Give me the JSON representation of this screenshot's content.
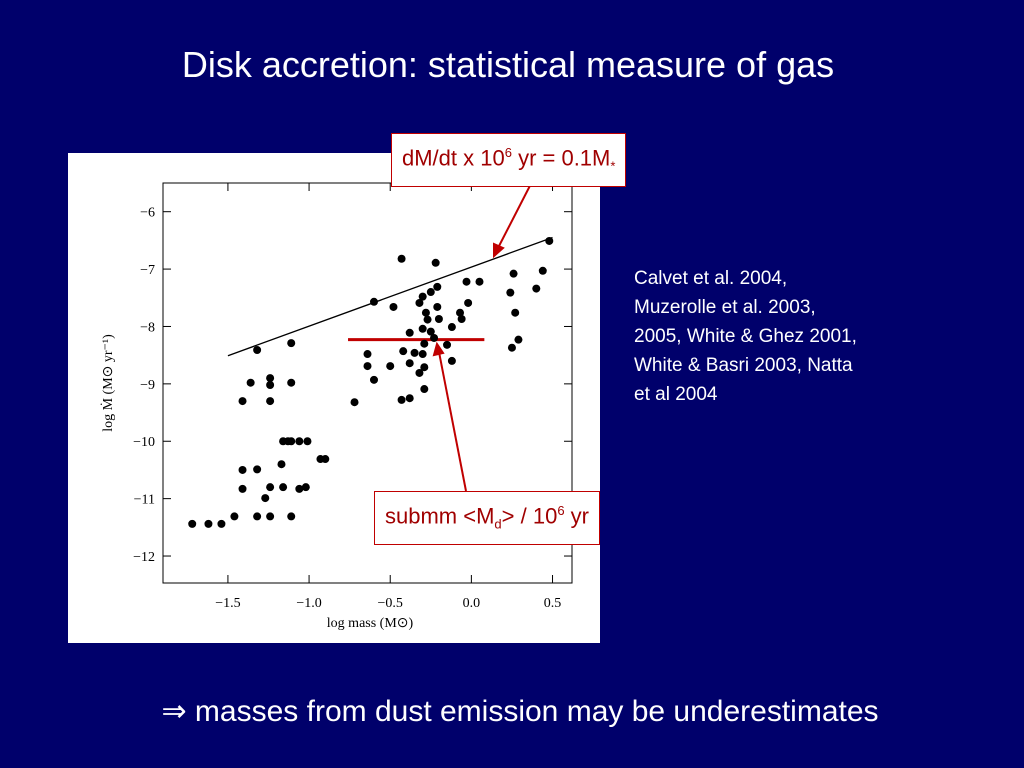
{
  "title": "Disk accretion: statistical measure of gas",
  "references": [
    "Calvet et al. 2004,",
    "Muzerolle et al. 2003,",
    "2005, White & Ghez 2001,",
    "White & Basri 2003, Natta",
    "et al 2004"
  ],
  "conclusion": "⇒ masses from dust emission may be underestimates",
  "callouts": [
    {
      "segments": [
        {
          "text": "dM/dt x 10"
        },
        {
          "text": "6",
          "style": "sup"
        },
        {
          "text": " yr = 0.1M"
        },
        {
          "text": "*",
          "style": "sub"
        }
      ]
    },
    {
      "segments": [
        {
          "text": "submm <M"
        },
        {
          "text": "d",
          "style": "sub"
        },
        {
          "text": "> / 10"
        },
        {
          "text": "6",
          "style": "sup"
        },
        {
          "text": " yr"
        }
      ]
    }
  ],
  "chart_data": {
    "type": "scatter",
    "x_label": "log mass (M⊙)",
    "y_label": "log Ṁ (M⊙ yr⁻¹)",
    "xlim": [
      -1.9,
      0.62
    ],
    "ylim": [
      -12.47,
      -5.5
    ],
    "xticks": [
      {
        "value": -1.5,
        "label": "−1.5"
      },
      {
        "value": -1.0,
        "label": "−1.0"
      },
      {
        "value": -0.5,
        "label": "−0.5"
      },
      {
        "value": 0,
        "label": "0.0"
      },
      0.5
    ],
    "yticks": [
      {
        "value": -6,
        "label": "−6"
      },
      {
        "value": -7,
        "label": "−7"
      },
      {
        "value": -8,
        "label": "−8"
      },
      {
        "value": -9,
        "label": "−9"
      },
      {
        "value": -10,
        "label": "−10"
      },
      {
        "value": -11,
        "label": "−11"
      },
      {
        "value": -12,
        "label": "−12"
      }
    ],
    "color": "#000000",
    "x": [
      -1.72,
      -1.62,
      -1.54,
      -1.46,
      -1.41,
      -1.41,
      -1.41,
      -1.36,
      -1.32,
      -1.32,
      -1.32,
      -1.27,
      -1.24,
      -1.24,
      -1.24,
      -1.24,
      -1.24,
      -1.17,
      -1.16,
      -1.13,
      -1.16,
      -1.11,
      -1.11,
      -1.11,
      -1.11,
      -1.06,
      -1.06,
      -1.02,
      -1.01,
      -0.93,
      -0.9,
      -0.72,
      -0.64,
      -0.64,
      -0.6,
      -0.6,
      -0.5,
      -0.48,
      -0.43,
      -0.43,
      -0.42,
      -0.38,
      -0.38,
      -0.38,
      -0.35,
      -0.32,
      -0.32,
      -0.3,
      -0.3,
      -0.3,
      -0.29,
      -0.29,
      -0.29,
      -0.28,
      -0.27,
      -0.25,
      -0.25,
      -0.23,
      -0.22,
      -0.21,
      -0.21,
      -0.2,
      -0.15,
      -0.12,
      -0.12,
      -0.07,
      -0.06,
      -0.03,
      -0.02,
      0.05,
      0.24,
      0.26,
      0.25,
      0.27,
      0.29,
      0.4,
      0.44,
      0.48
    ],
    "y": [
      -11.44,
      -11.44,
      -11.44,
      -11.31,
      -10.5,
      -10.83,
      -9.3,
      -8.98,
      -8.41,
      -10.49,
      -11.31,
      -10.99,
      -10.8,
      -11.31,
      -8.9,
      -9.02,
      -9.3,
      -10.4,
      -10.0,
      -10.0,
      -10.8,
      -8.29,
      -8.98,
      -10.0,
      -11.31,
      -10.0,
      -10.83,
      -10.8,
      -10.0,
      -10.31,
      -10.31,
      -9.32,
      -8.48,
      -8.69,
      -7.57,
      -8.93,
      -8.69,
      -7.66,
      -6.82,
      -9.28,
      -8.43,
      -8.11,
      -8.64,
      -9.25,
      -8.46,
      -8.81,
      -7.59,
      -7.48,
      -8.04,
      -8.48,
      -8.3,
      -8.71,
      -9.09,
      -7.76,
      -7.88,
      -7.4,
      -8.09,
      -8.2,
      -6.89,
      -7.31,
      -7.66,
      -7.87,
      -8.32,
      -8.6,
      -8.01,
      -7.76,
      -7.87,
      -7.22,
      -7.59,
      -7.22,
      -7.41,
      -7.08,
      -8.37,
      -7.76,
      -8.23,
      -7.34,
      -7.03,
      -6.51
    ],
    "lines": [
      {
        "x": [
          -1.5,
          0.5
        ],
        "y": [
          -8.51,
          -6.45
        ],
        "color": "#000000"
      },
      {
        "x": [
          -0.76,
          0.08
        ],
        "y": [
          -8.23,
          -8.23
        ],
        "color": "#c00000"
      }
    ]
  }
}
